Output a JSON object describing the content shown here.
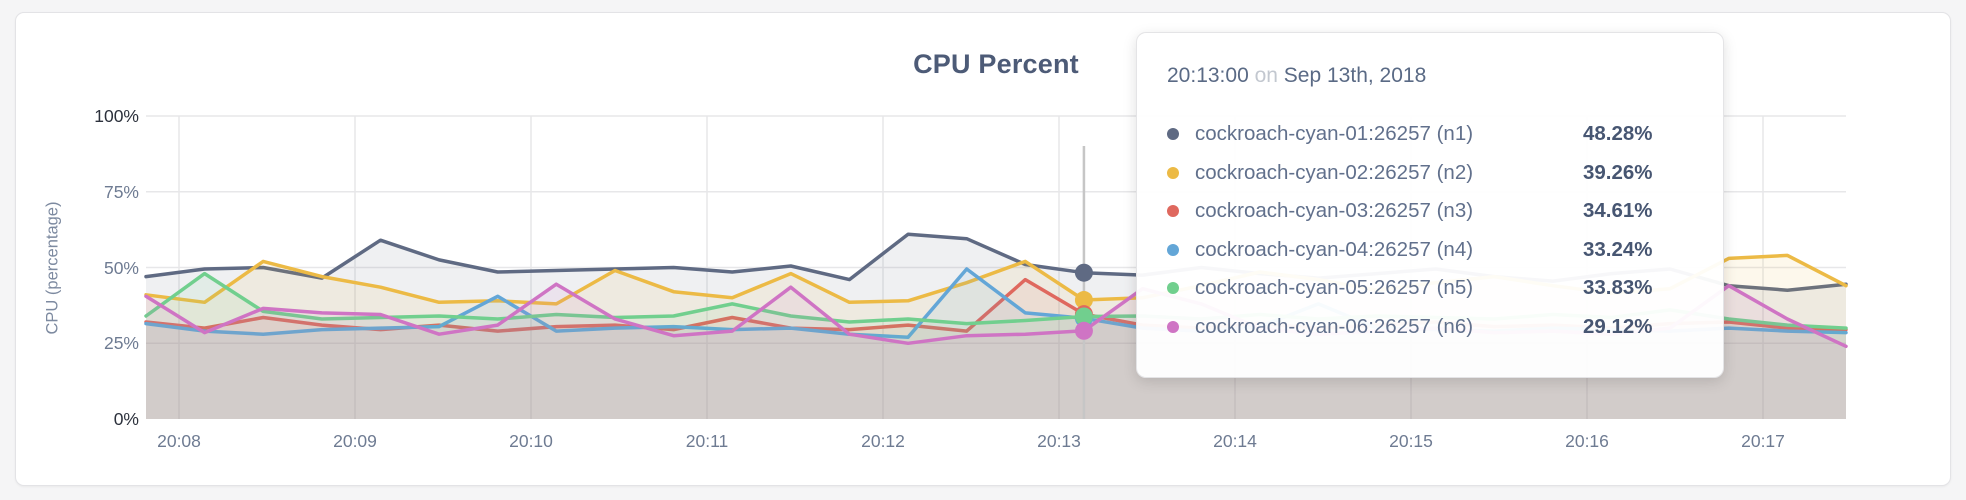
{
  "chart_data": {
    "type": "area",
    "title": "CPU Percent",
    "ylabel": "CPU (percentage)",
    "xlabel": "",
    "ylim": [
      0,
      100
    ],
    "grid": true,
    "y_ticks": [
      {
        "label": "100%",
        "value": 100
      },
      {
        "label": "75%",
        "value": 75
      },
      {
        "label": "50%",
        "value": 50
      },
      {
        "label": "25%",
        "value": 25
      },
      {
        "label": "0%",
        "value": 0
      }
    ],
    "y_gridlines": [
      100,
      75,
      50,
      25
    ],
    "x_ticks": [
      "20:08",
      "20:09",
      "20:10",
      "20:11",
      "20:12",
      "20:13",
      "20:14",
      "20:15",
      "20:16",
      "20:17"
    ],
    "x_start": "20:07:49",
    "interval_seconds": 20,
    "series": [
      {
        "id": "n1",
        "name": "cockroach-cyan-01:26257 (n1)",
        "color": "#5f6a83",
        "values": [
          47,
          49.5,
          50,
          46.5,
          59,
          52.5,
          48.5,
          49,
          49.5,
          50,
          48.5,
          50.5,
          46,
          61,
          59.5,
          51,
          48.28,
          47.5,
          50,
          48,
          46.5,
          48,
          49.5,
          47,
          45.5,
          48,
          49.5,
          44,
          42.5,
          44.5
        ]
      },
      {
        "id": "n2",
        "name": "cockroach-cyan-02:26257 (n2)",
        "color": "#ecba45",
        "values": [
          41,
          38.5,
          52,
          47,
          43.5,
          38.5,
          39,
          38,
          49,
          42,
          40,
          48,
          38.5,
          39,
          45,
          52,
          39.26,
          40,
          44,
          48.5,
          46,
          42.5,
          45,
          47,
          44,
          41.5,
          43,
          53,
          54,
          44
        ]
      },
      {
        "id": "n3",
        "name": "cockroach-cyan-03:26257 (n3)",
        "color": "#df685e",
        "values": [
          32,
          30,
          33.5,
          31,
          29.5,
          31,
          29,
          30.5,
          31,
          29.5,
          33.5,
          30,
          29.5,
          31,
          29,
          46,
          34.61,
          31,
          30,
          31.5,
          30,
          31,
          32,
          30.5,
          31,
          30,
          31.5,
          32,
          30,
          29.5
        ]
      },
      {
        "id": "n4",
        "name": "cockroach-cyan-04:26257 (n4)",
        "color": "#63a6d7",
        "values": [
          31.5,
          29,
          28,
          29.5,
          30,
          30.5,
          40.5,
          29,
          30,
          30.5,
          29.5,
          30,
          28,
          27,
          49.5,
          35,
          33.24,
          30,
          29,
          30.5,
          38,
          30,
          29.5,
          29,
          30,
          29.5,
          29,
          30,
          29,
          28.5
        ]
      },
      {
        "id": "n5",
        "name": "cockroach-cyan-05:26257 (n5)",
        "color": "#71cf8e",
        "values": [
          34,
          48,
          35.5,
          33,
          33.5,
          34,
          33,
          34.5,
          33.5,
          34,
          38,
          34,
          32,
          33,
          31.5,
          32.5,
          33.83,
          34,
          33,
          34.5,
          33,
          34,
          33.5,
          33,
          34.5,
          33.5,
          36,
          33,
          31,
          30
        ]
      },
      {
        "id": "n6",
        "name": "cockroach-cyan-06:26257 (n6)",
        "color": "#cf74c4",
        "values": [
          40.5,
          28.5,
          36.5,
          35,
          34.5,
          28,
          31,
          44.5,
          33,
          27.5,
          29,
          43.5,
          28,
          25,
          27.5,
          28,
          29.12,
          43,
          38,
          30,
          28,
          29,
          30,
          28.5,
          29,
          28,
          30,
          44,
          33,
          24
        ]
      }
    ],
    "area_fill_opacity": 0.1,
    "legend_position": "tooltip"
  },
  "hover": {
    "index": 16,
    "time_label": "20:13",
    "line_color": "#c6c6c6"
  },
  "tooltip": {
    "time": "20:13:00",
    "conjunction": "on",
    "date": "Sep 13th, 2018",
    "rows": [
      {
        "label": "cockroach-cyan-01:26257 (n1)",
        "value": "48.28%"
      },
      {
        "label": "cockroach-cyan-02:26257 (n2)",
        "value": "39.26%"
      },
      {
        "label": "cockroach-cyan-03:26257 (n3)",
        "value": "34.61%"
      },
      {
        "label": "cockroach-cyan-04:26257 (n4)",
        "value": "33.24%"
      },
      {
        "label": "cockroach-cyan-05:26257 (n5)",
        "value": "33.83%"
      },
      {
        "label": "cockroach-cyan-06:26257 (n6)",
        "value": "29.12%"
      }
    ]
  }
}
